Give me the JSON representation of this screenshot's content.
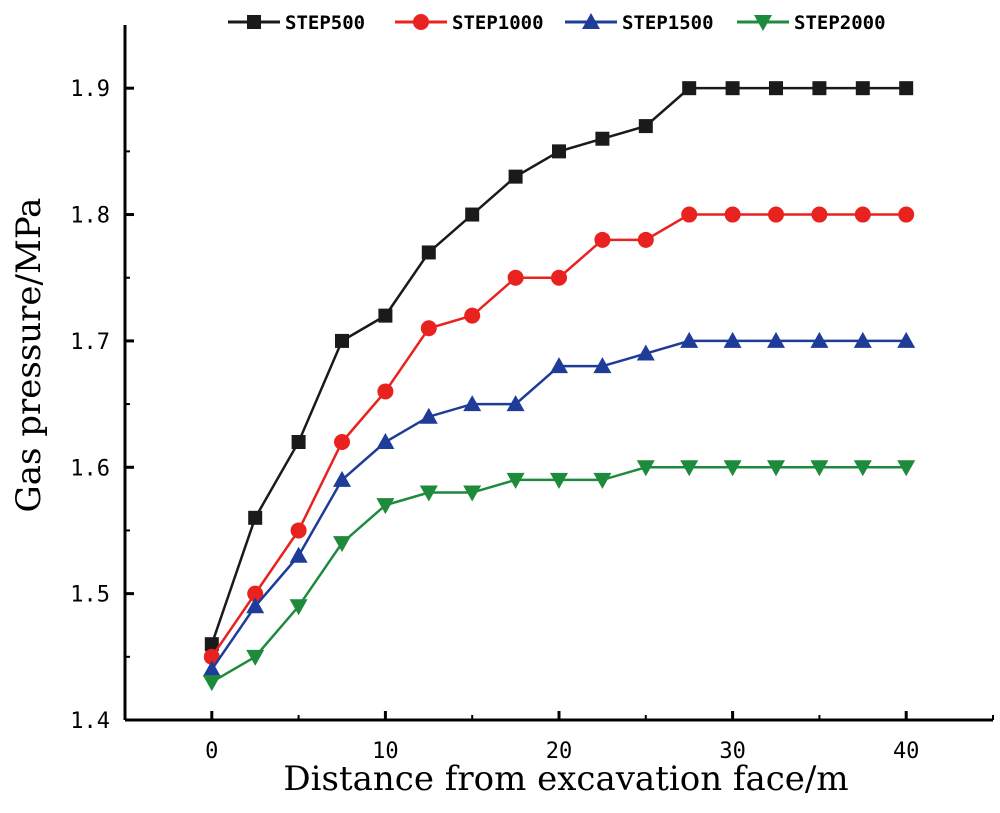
{
  "chart_data": {
    "type": "line",
    "title": "",
    "xlabel": "Distance from excavation face/m",
    "ylabel": "Gas pressure/MPa",
    "xlim": [
      -5,
      45
    ],
    "ylim": [
      1.4,
      1.95
    ],
    "xticks": [
      0,
      10,
      20,
      30,
      40
    ],
    "yticks": [
      1.4,
      1.5,
      1.6,
      1.7,
      1.8,
      1.9
    ],
    "xtick_labels": [
      "0",
      "10",
      "20",
      "30",
      "40"
    ],
    "ytick_labels": [
      "1.4",
      "1.5",
      "1.6",
      "1.7",
      "1.8",
      "1.9"
    ],
    "grid": false,
    "legend_position": "top",
    "x": [
      0,
      2.5,
      5,
      7.5,
      10,
      12.5,
      15,
      17.5,
      20,
      22.5,
      25,
      27.5,
      30,
      32.5,
      35,
      37.5,
      40
    ],
    "series": [
      {
        "name": "STEP500",
        "color": "#1a1a1a",
        "marker": "square",
        "values": [
          1.46,
          1.56,
          1.62,
          1.7,
          1.72,
          1.77,
          1.8,
          1.83,
          1.85,
          1.86,
          1.87,
          1.9,
          1.9,
          1.9,
          1.9,
          1.9,
          1.9
        ]
      },
      {
        "name": "STEP1000",
        "color": "#e8221e",
        "marker": "circle",
        "values": [
          1.45,
          1.5,
          1.55,
          1.62,
          1.66,
          1.71,
          1.72,
          1.75,
          1.75,
          1.78,
          1.78,
          1.8,
          1.8,
          1.8,
          1.8,
          1.8,
          1.8
        ]
      },
      {
        "name": "STEP1500",
        "color": "#1f3c99",
        "marker": "triangle-up",
        "values": [
          1.44,
          1.49,
          1.53,
          1.59,
          1.62,
          1.64,
          1.65,
          1.65,
          1.68,
          1.68,
          1.69,
          1.7,
          1.7,
          1.7,
          1.7,
          1.7,
          1.7
        ]
      },
      {
        "name": "STEP2000",
        "color": "#1e8a3c",
        "marker": "triangle-down",
        "values": [
          1.43,
          1.45,
          1.49,
          1.54,
          1.57,
          1.58,
          1.58,
          1.59,
          1.59,
          1.59,
          1.6,
          1.6,
          1.6,
          1.6,
          1.6,
          1.6,
          1.6
        ]
      }
    ]
  }
}
